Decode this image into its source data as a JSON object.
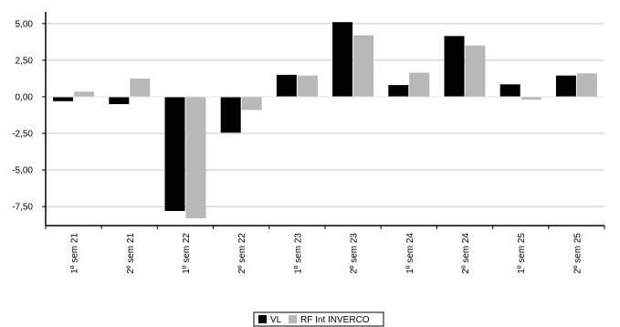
{
  "chart_data": {
    "type": "bar",
    "categories": [
      "1º sem 21",
      "2º sem 21",
      "1º sem 22",
      "2º sem 22",
      "1º sem 23",
      "2º sem 23",
      "1º sem 24",
      "2º sem 24",
      "1º sem 25",
      "2º sem 25"
    ],
    "series": [
      {
        "name": "VL",
        "color": "#000000",
        "values": [
          -0.3,
          -0.5,
          -7.8,
          -2.45,
          1.5,
          5.1,
          0.8,
          4.15,
          0.85,
          1.45
        ]
      },
      {
        "name": "RF Int INVERCO",
        "color": "#b8b8b8",
        "values": [
          0.35,
          1.25,
          -8.3,
          -0.9,
          1.45,
          4.2,
          1.65,
          3.5,
          -0.2,
          1.6
        ]
      }
    ],
    "yticks": [
      "5,00",
      "2,50",
      "0,00",
      "-2,50",
      "-5,00",
      "-7,50"
    ],
    "ytick_values": [
      5,
      2.5,
      0,
      -2.5,
      -5,
      -7.5
    ],
    "ylim": [
      -8.8,
      5.8
    ],
    "grid": true,
    "legend_position": "bottom-center"
  }
}
